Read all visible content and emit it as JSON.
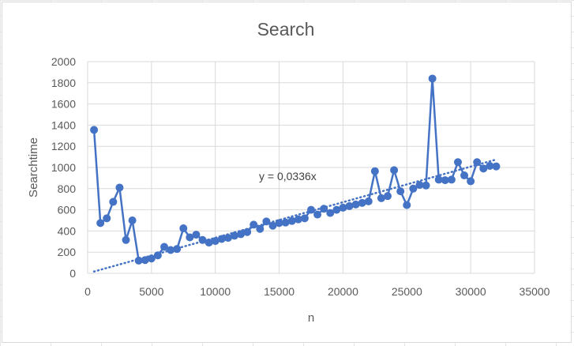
{
  "chart_data": {
    "type": "scatter",
    "title": "Search",
    "xlabel": "n",
    "ylabel": "Searchtime",
    "xlim": [
      0,
      35000
    ],
    "ylim": [
      0,
      2000
    ],
    "x_ticks": [
      "0",
      "5000",
      "10000",
      "15000",
      "20000",
      "25000",
      "30000",
      "35000"
    ],
    "y_ticks": [
      "0",
      "200",
      "400",
      "600",
      "800",
      "1000",
      "1200",
      "1400",
      "1600",
      "1800",
      "2000"
    ],
    "grid": true,
    "series": [
      {
        "color": "#4472c4",
        "marker": "circle",
        "line": "straight",
        "points": [
          [
            500,
            1355
          ],
          [
            1000,
            475
          ],
          [
            1500,
            520
          ],
          [
            2000,
            675
          ],
          [
            2500,
            810
          ],
          [
            3000,
            315
          ],
          [
            3500,
            500
          ],
          [
            4000,
            120
          ],
          [
            4500,
            125
          ],
          [
            5000,
            140
          ],
          [
            5500,
            170
          ],
          [
            6000,
            250
          ],
          [
            6500,
            220
          ],
          [
            7000,
            230
          ],
          [
            7500,
            425
          ],
          [
            8000,
            340
          ],
          [
            8500,
            365
          ],
          [
            9000,
            315
          ],
          [
            9500,
            290
          ],
          [
            10000,
            305
          ],
          [
            10500,
            325
          ],
          [
            11000,
            335
          ],
          [
            11500,
            355
          ],
          [
            12000,
            370
          ],
          [
            12500,
            390
          ],
          [
            13000,
            460
          ],
          [
            13500,
            420
          ],
          [
            14000,
            490
          ],
          [
            14500,
            450
          ],
          [
            15000,
            475
          ],
          [
            15500,
            480
          ],
          [
            16000,
            495
          ],
          [
            16500,
            510
          ],
          [
            17000,
            520
          ],
          [
            17500,
            600
          ],
          [
            18000,
            555
          ],
          [
            18500,
            610
          ],
          [
            19000,
            570
          ],
          [
            19500,
            600
          ],
          [
            20000,
            620
          ],
          [
            20500,
            635
          ],
          [
            21000,
            650
          ],
          [
            21500,
            665
          ],
          [
            22000,
            680
          ],
          [
            22500,
            965
          ],
          [
            23000,
            710
          ],
          [
            23500,
            730
          ],
          [
            24000,
            975
          ],
          [
            24500,
            775
          ],
          [
            25000,
            645
          ],
          [
            25500,
            800
          ],
          [
            26000,
            835
          ],
          [
            26500,
            830
          ],
          [
            27000,
            1840
          ],
          [
            27500,
            885
          ],
          [
            28000,
            880
          ],
          [
            28500,
            885
          ],
          [
            29000,
            1050
          ],
          [
            29500,
            925
          ],
          [
            30000,
            870
          ],
          [
            30500,
            1050
          ],
          [
            31000,
            990
          ],
          [
            31500,
            1015
          ],
          [
            32000,
            1010
          ]
        ]
      }
    ],
    "trendline": {
      "type": "linear",
      "slope": 0.0336,
      "intercept": 0,
      "x_range": [
        500,
        32000
      ],
      "style": "dotted",
      "color": "#4472c4",
      "label": "y = 0,0336x"
    }
  }
}
